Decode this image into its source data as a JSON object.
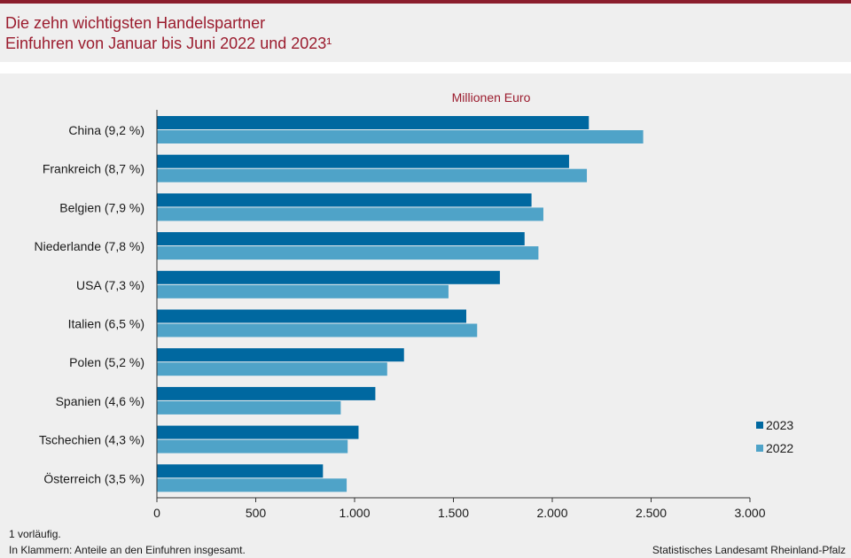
{
  "header": {
    "title_line1": "Die zehn wichtigsten Handelspartner",
    "title_line2": "Einfuhren von Januar bis Juni 2022 und 2023¹"
  },
  "chart_data": {
    "type": "bar",
    "orientation": "horizontal",
    "unit_label": "Millionen Euro",
    "categories": [
      "China (9,2 %)",
      "Frankreich (8,7 %)",
      "Belgien (7,9 %)",
      "Niederlande (7,8 %)",
      "USA (7,3 %)",
      "Italien (6,5 %)",
      "Polen (5,2 %)",
      "Spanien (4,6 %)",
      "Tschechien (4,3 %)",
      "Österreich (3,5 %)"
    ],
    "series": [
      {
        "name": "2023",
        "color": "#0068a0",
        "values": [
          2185,
          2085,
          1895,
          1860,
          1735,
          1565,
          1250,
          1105,
          1020,
          840
        ]
      },
      {
        "name": "2022",
        "color": "#4fa3c8",
        "values": [
          2460,
          2175,
          1955,
          1930,
          1475,
          1620,
          1165,
          930,
          965,
          960
        ]
      }
    ],
    "xlim": [
      0,
      3000
    ],
    "xticks": [
      0,
      500,
      1000,
      1500,
      2000,
      2500,
      3000
    ],
    "xtick_labels": [
      "0",
      "500",
      "1.000",
      "1.500",
      "2.000",
      "2.500",
      "3.000"
    ],
    "legend_position": "right",
    "grid": false
  },
  "footnotes": {
    "note1": "1 vorläufig.",
    "note2": "In Klammern: Anteile an den Einfuhren insgesamt.",
    "source": "Statistisches Landesamt Rheinland-Pfalz"
  }
}
